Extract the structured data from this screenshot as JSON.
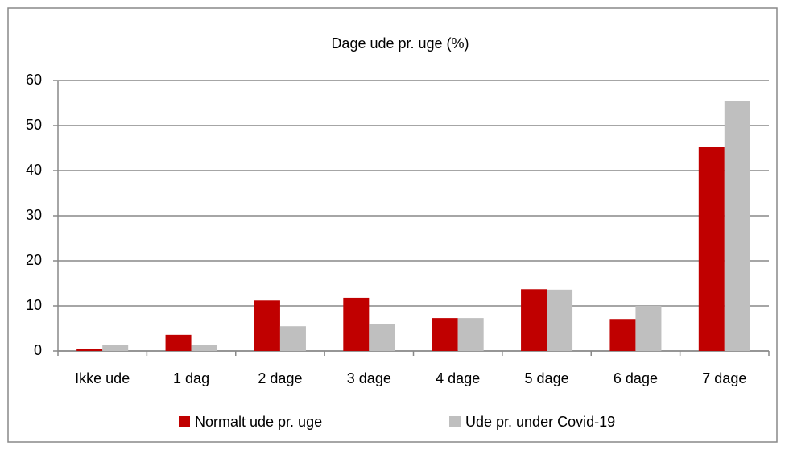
{
  "chart_data": {
    "type": "bar",
    "title": "Dage ude pr. uge (%)",
    "categories": [
      "Ikke ude",
      "1 dag",
      "2 dage",
      "3 dage",
      "4 dage",
      "5 dage",
      "6 dage",
      "7 dage"
    ],
    "series": [
      {
        "name": "Normalt ude pr. uge",
        "color": "#c00000",
        "values": [
          0.4,
          3.6,
          11.2,
          11.8,
          7.3,
          13.7,
          7.1,
          45.2
        ]
      },
      {
        "name": "Ude pr. under Covid-19",
        "color": "#bfbfbf",
        "values": [
          1.4,
          1.4,
          5.5,
          5.9,
          7.3,
          13.6,
          10,
          55.5
        ]
      }
    ],
    "ylim": [
      0,
      60
    ],
    "yticks": [
      0,
      10,
      20,
      30,
      40,
      50,
      60
    ],
    "grid": true,
    "legend": "bottom"
  }
}
